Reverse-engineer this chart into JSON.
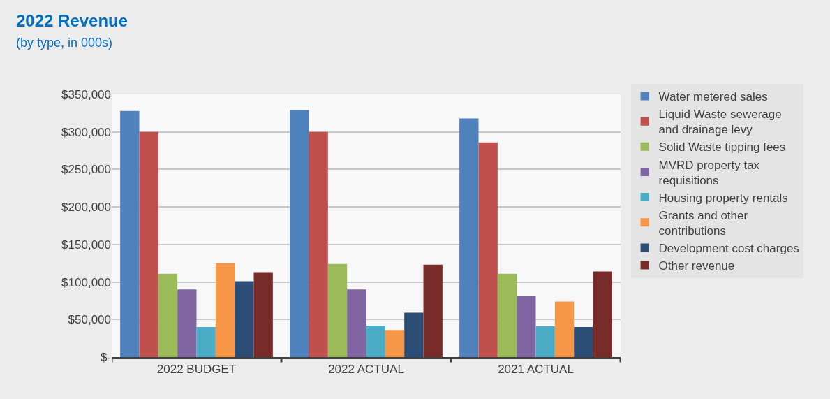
{
  "chart_data": {
    "type": "bar",
    "title": "2022 Revenue",
    "subtitle": "(by type, in 000s)",
    "categories": [
      "2022 BUDGET",
      "2022 ACTUAL",
      "2021 ACTUAL"
    ],
    "series": [
      {
        "name": "Water metered sales",
        "color": "#4f81bd",
        "values": [
          328000,
          329000,
          318000
        ]
      },
      {
        "name": "Liquid Waste sewerage and drainage levy",
        "color": "#c0504d",
        "values": [
          300000,
          300000,
          286000
        ]
      },
      {
        "name": "Solid Waste tipping fees",
        "color": "#9bbb59",
        "values": [
          111000,
          124000,
          111000
        ]
      },
      {
        "name": "MVRD property tax requisitions",
        "color": "#8064a2",
        "values": [
          90000,
          90000,
          81000
        ]
      },
      {
        "name": "Housing property rentals",
        "color": "#4bacc6",
        "values": [
          40000,
          42000,
          41000
        ]
      },
      {
        "name": "Grants and other contributions",
        "color": "#f79646",
        "values": [
          125000,
          36000,
          74000
        ]
      },
      {
        "name": "Development cost charges",
        "color": "#2c4d75",
        "values": [
          101000,
          59000,
          40000
        ]
      },
      {
        "name": "Other revenue",
        "color": "#772c2a",
        "values": [
          113000,
          123000,
          114000
        ]
      }
    ],
    "ylim": [
      0,
      350000
    ],
    "yticks": [
      {
        "value": 0,
        "label": "$-"
      },
      {
        "value": 50000,
        "label": "$50,000"
      },
      {
        "value": 100000,
        "label": "$100,000"
      },
      {
        "value": 150000,
        "label": "$150,000"
      },
      {
        "value": 200000,
        "label": "$200,000"
      },
      {
        "value": 250000,
        "label": "$250,000"
      },
      {
        "value": 300000,
        "label": "$300,000"
      },
      {
        "value": 350000,
        "label": "$350,000"
      }
    ],
    "grid": "y",
    "legend": "right"
  }
}
